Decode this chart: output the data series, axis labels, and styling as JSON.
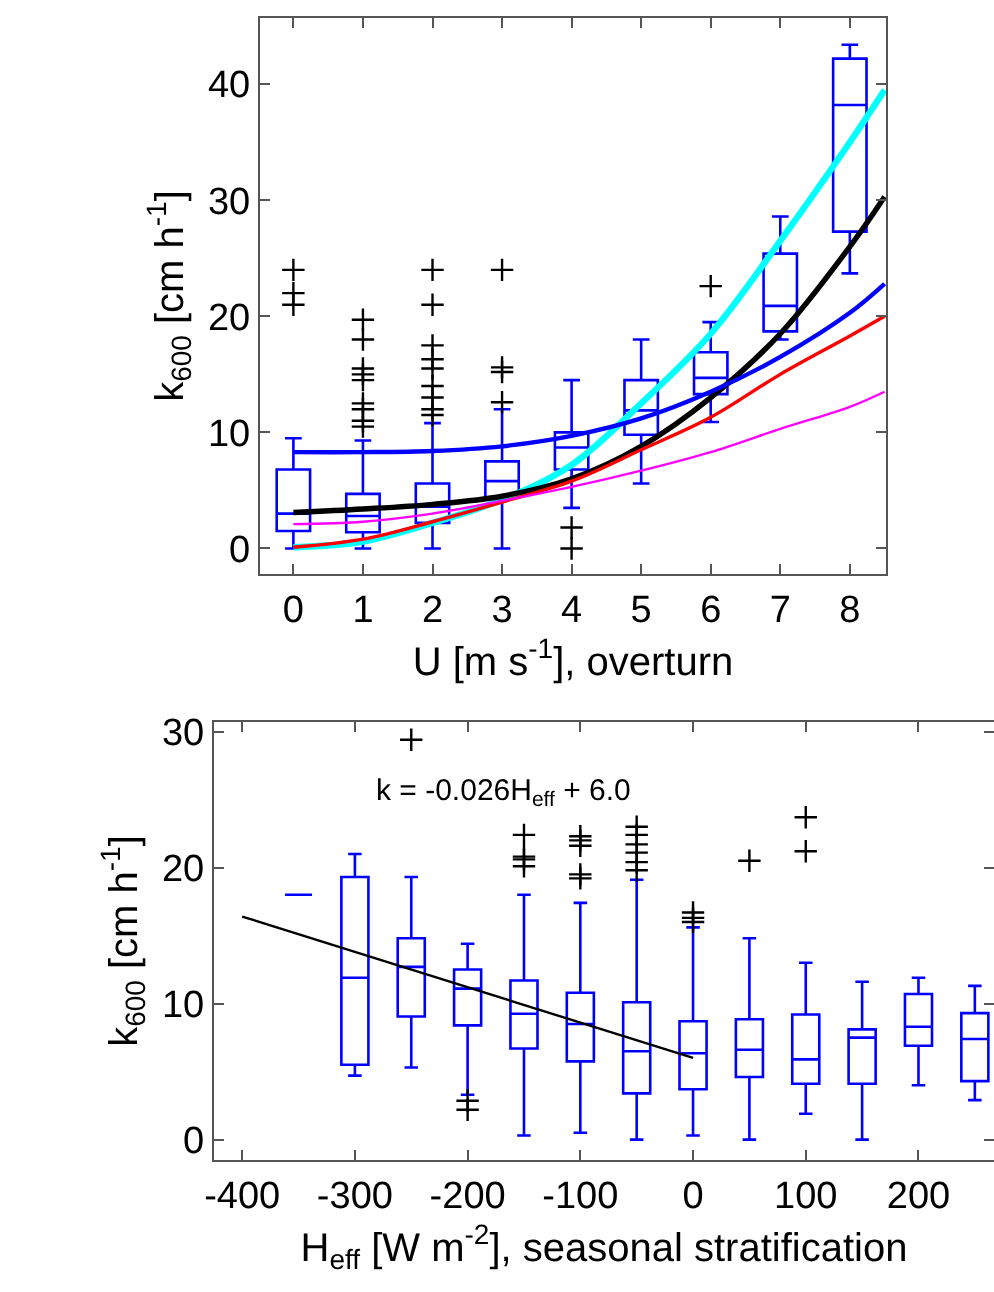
{
  "chart_data": [
    {
      "type": "box",
      "xlabel": "U [m s$^{-1}$], overturn",
      "ylabel": "k$_{600}$ [cm h$^{-1}$]",
      "x": [
        0,
        1,
        2,
        3,
        4,
        5,
        6,
        7,
        8
      ],
      "xlim": [
        -0.48,
        8.52
      ],
      "xticks": [
        0,
        1,
        2,
        3,
        4,
        5,
        6,
        7,
        8
      ],
      "ylim": [
        -2.2,
        45.7
      ],
      "yticks": [
        0,
        10,
        20,
        30,
        40
      ],
      "series": [
        {
          "color": "#0000ff",
          "boxes": [
            {
              "low": 0,
              "q1": 1.5,
              "median": 3.0,
              "q3": 6.8,
              "high": 9.5,
              "outliers": [
                21,
                22,
                24
              ]
            },
            {
              "low": 0,
              "q1": 1.4,
              "median": 2.8,
              "q3": 4.7,
              "high": 9.3,
              "outliers": [
                10.5,
                11,
                12,
                12.5,
                14.5,
                15,
                15.5,
                18,
                19.7
              ]
            },
            {
              "low": 0,
              "q1": 2.2,
              "median": 3.6,
              "q3": 5.6,
              "high": 10.8,
              "outliers": [
                11.5,
                12,
                13,
                14,
                15.5,
                16.3,
                17.5,
                21,
                24
              ]
            },
            {
              "low": 0,
              "q1": 4.4,
              "median": 5.8,
              "q3": 7.5,
              "high": 12,
              "outliers": [
                12.6,
                15.2,
                15.6,
                24
              ]
            },
            {
              "low": 3.5,
              "q1": 6.8,
              "median": 8.7,
              "q3": 10.0,
              "high": 14.5,
              "outliers": [
                0,
                1.8
              ]
            },
            {
              "low": 5.6,
              "q1": 9.8,
              "median": 11.9,
              "q3": 14.5,
              "high": 18.0
            },
            {
              "low": 10.9,
              "q1": 13.3,
              "median": 14.7,
              "q3": 16.9,
              "high": 19.5,
              "outliers": [
                22.6
              ]
            },
            {
              "low": 18.0,
              "q1": 18.7,
              "median": 20.9,
              "q3": 25.4,
              "high": 28.6
            },
            {
              "low": 23.7,
              "q1": 27.3,
              "median": 38.2,
              "q3": 42.2,
              "high": 43.4
            }
          ]
        },
        {
          "type": "line",
          "color": "#00ffff",
          "x": [
            0,
            1,
            2,
            3,
            4,
            5,
            6,
            7,
            8,
            8.5
          ],
          "values": [
            0.1,
            0.6,
            2.2,
            4.2,
            7.2,
            12.5,
            18.5,
            26.5,
            35,
            39.5
          ]
        },
        {
          "type": "line",
          "color": "#000000",
          "x": [
            0,
            1,
            2,
            3,
            4,
            5,
            6,
            7,
            8,
            8.5
          ],
          "values": [
            3.1,
            3.4,
            3.8,
            4.5,
            6.0,
            8.8,
            13,
            18.5,
            26,
            30.3
          ]
        },
        {
          "type": "line",
          "color": "#0000ff",
          "x": [
            0,
            1,
            2,
            3,
            4,
            5,
            6,
            7,
            8,
            8.5
          ],
          "values": [
            8.3,
            8.3,
            8.4,
            8.8,
            9.7,
            11.2,
            13.5,
            16.5,
            20.3,
            22.8
          ]
        },
        {
          "type": "line",
          "color": "#ff0000",
          "x": [
            0,
            1,
            2,
            3,
            4,
            5,
            6,
            7,
            8,
            8.5
          ],
          "values": [
            0.1,
            0.8,
            2.3,
            4.0,
            5.8,
            8.5,
            11.3,
            15,
            18.3,
            20
          ]
        },
        {
          "type": "line",
          "color": "#ff00ff",
          "x": [
            0,
            1,
            2,
            3,
            4,
            5,
            6,
            7,
            8,
            8.5
          ],
          "values": [
            2.1,
            2.3,
            3.0,
            4.1,
            5.3,
            6.7,
            8.3,
            10.3,
            12.2,
            13.5
          ]
        }
      ]
    },
    {
      "type": "box",
      "xlabel": "H$_{eff}$ [W m$^{-2}$], seasonal stratification",
      "ylabel": "k$_{600}$ [cm h$^{-1}$]",
      "x": [
        -350,
        -300,
        -250,
        -200,
        -150,
        -100,
        -50,
        0,
        50,
        100,
        150,
        200,
        250
      ],
      "xlim": [
        -425,
        267
      ],
      "xticks": [
        -400,
        -300,
        -200,
        -100,
        0,
        100,
        200
      ],
      "ylim": [
        -1.5,
        30.7
      ],
      "yticks": [
        0,
        10,
        20,
        30
      ],
      "annotations": [
        "k = -0.026H$_{eff}$ + 6.0"
      ],
      "series": [
        {
          "color": "#0000ff",
          "boxes": [
            {
              "low": 18,
              "q1": 18,
              "median": 18,
              "q3": 18,
              "high": 18
            },
            {
              "low": 4.7,
              "q1": 5.5,
              "median": 11.9,
              "q3": 19.3,
              "high": 21.0
            },
            {
              "low": 5.3,
              "q1": 9.05,
              "median": 12.7,
              "q3": 14.8,
              "high": 19.3,
              "outliers": [
                29.4
              ]
            },
            {
              "low": 3.3,
              "q1": 8.4,
              "median": 11.1,
              "q3": 12.5,
              "high": 14.4,
              "outliers": [
                2.2,
                2.85
              ]
            },
            {
              "low": 0.3,
              "q1": 6.7,
              "median": 9.25,
              "q3": 11.7,
              "high": 18.0,
              "outliers": [
                20.1,
                20.6,
                20.8,
                22.4
              ]
            },
            {
              "low": 0.5,
              "q1": 5.75,
              "median": 8.5,
              "q3": 10.8,
              "high": 17.4,
              "outliers": [
                19.2,
                19.5,
                21.6,
                22.0,
                22.3
              ]
            },
            {
              "low": 0,
              "q1": 3.4,
              "median": 6.5,
              "q3": 10.1,
              "high": 19.1,
              "outliers": [
                19.8,
                20.4,
                21.1,
                21.7,
                22.4,
                23.0
              ]
            },
            {
              "low": 0.3,
              "q1": 3.7,
              "median": 6.35,
              "q3": 8.7,
              "high": 15.6,
              "outliers": [
                16.0,
                16.3,
                16.7
              ]
            },
            {
              "low": 0,
              "q1": 4.6,
              "median": 6.6,
              "q3": 8.85,
              "high": 14.8,
              "outliers": [
                20.5
              ]
            },
            {
              "low": 1.9,
              "q1": 4.1,
              "median": 5.9,
              "q3": 9.2,
              "high": 13.0,
              "outliers": [
                21.2,
                23.7
              ]
            },
            {
              "low": 0,
              "q1": 4.1,
              "median": 7.5,
              "q3": 8.1,
              "high": 11.6
            },
            {
              "low": 4.0,
              "q1": 6.9,
              "median": 8.3,
              "q3": 10.7,
              "high": 11.9
            },
            {
              "low": 2.9,
              "q1": 4.3,
              "median": 7.4,
              "q3": 9.3,
              "high": 11.3
            }
          ]
        },
        {
          "type": "line",
          "color": "#000000",
          "x": [
            -400,
            0
          ],
          "values": [
            16.4,
            6.0
          ]
        }
      ]
    }
  ]
}
